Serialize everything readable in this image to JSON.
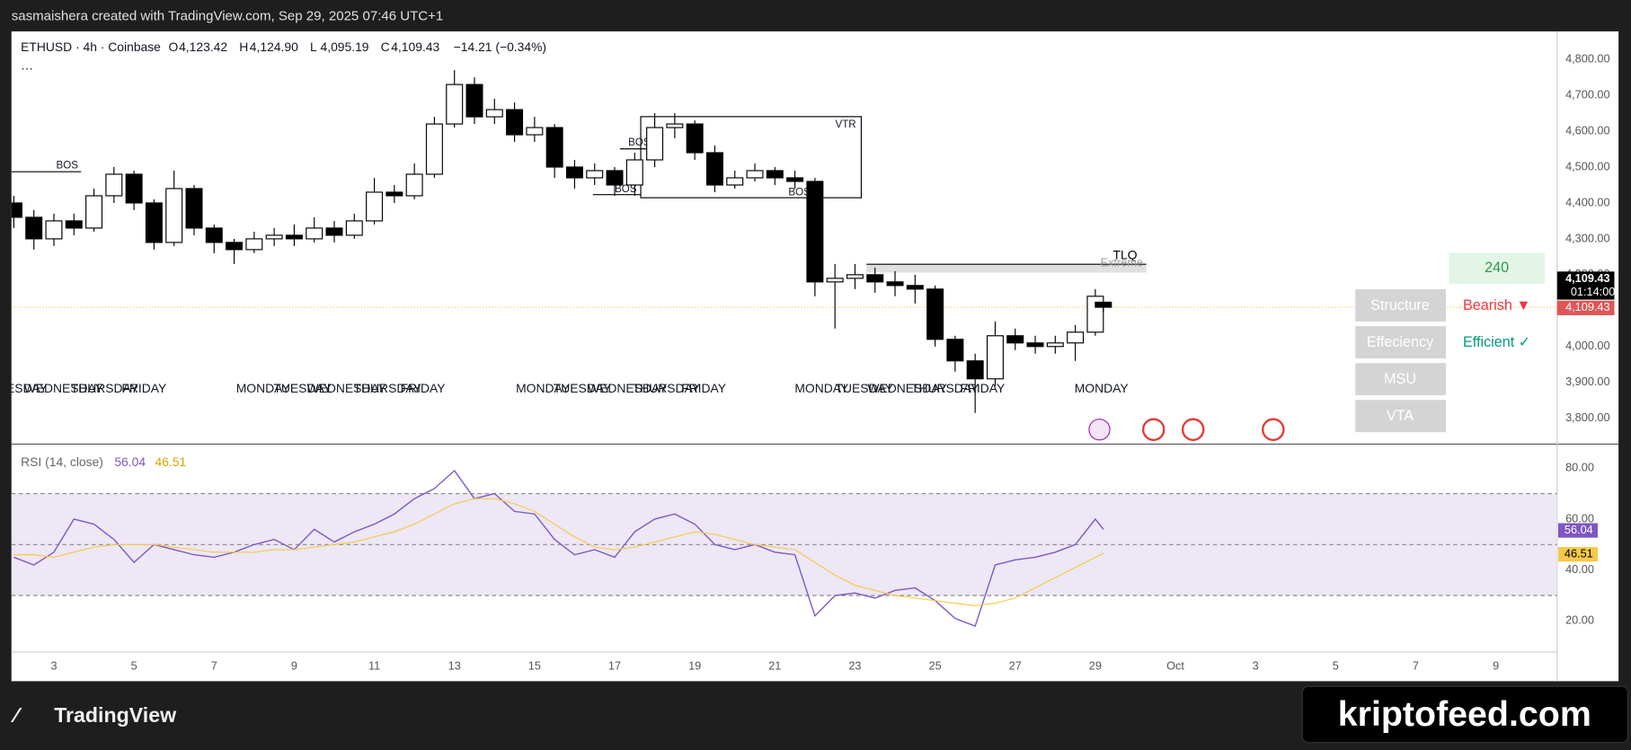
{
  "attribution": "sasmaishera created with TradingView.com, Sep 29, 2025 07:46 UTC+1",
  "header": {
    "symbol": "ETHUSD · 4h · Coinbase",
    "legend": [
      {
        "key": "O",
        "value": "4,123.42"
      },
      {
        "key": "H",
        "value": "4,124.90"
      },
      {
        "key": "L",
        "value": "4,095.19"
      },
      {
        "key": "C",
        "value": "4,109.43"
      }
    ],
    "change": "−14.21 (−0.34%)",
    "more": "···"
  },
  "panel": {
    "timeframe": "240",
    "rows": [
      {
        "label": "Structure",
        "status": "Bearish ▼",
        "status_color": "#f23645"
      },
      {
        "label": "Effeciency",
        "status": "Efficient ✓",
        "status_color": "#089981"
      },
      {
        "label": "MSU"
      },
      {
        "label": "VTA"
      }
    ]
  },
  "price_tags": {
    "last": "4,109.43",
    "countdown": "01:14:00",
    "close": "4,109.43"
  },
  "rsi_tags": [
    "56.04",
    "46.51"
  ],
  "logo": "TradingView",
  "watermark": "kriptofeed.com",
  "chart_data": [
    {
      "type": "candlestick",
      "up_color": "#ffffff",
      "down_color": "#000000",
      "grid": false,
      "x": [
        2,
        2.5,
        3,
        3.5,
        4,
        4.5,
        5,
        5.5,
        6,
        6.5,
        7,
        7.5,
        8,
        8.5,
        9,
        9.5,
        10,
        10.5,
        11,
        11.5,
        12,
        12.5,
        13,
        13.5,
        14,
        14.5,
        15,
        15.5,
        16,
        16.5,
        17,
        17.5,
        18,
        18.5,
        19,
        19.5,
        20,
        20.5,
        21,
        21.5,
        22,
        22.5,
        23,
        23.5,
        24,
        24.5,
        25,
        25.5,
        26,
        26.5,
        27,
        27.5,
        28,
        28.5,
        29,
        29.2
      ],
      "open": [
        4400,
        4360,
        4300,
        4350,
        4330,
        4420,
        4480,
        4400,
        4290,
        4440,
        4330,
        4290,
        4270,
        4300,
        4310,
        4300,
        4330,
        4310,
        4350,
        4430,
        4420,
        4480,
        4620,
        4730,
        4640,
        4660,
        4590,
        4610,
        4500,
        4470,
        4490,
        4450,
        4520,
        4610,
        4620,
        4540,
        4450,
        4470,
        4490,
        4470,
        4460,
        4180,
        4190,
        4200,
        4180,
        4170,
        4160,
        4020,
        3960,
        3910,
        4030,
        4010,
        4000,
        4010,
        4040,
        4123.42
      ],
      "high": [
        4420,
        4380,
        4370,
        4370,
        4440,
        4500,
        4490,
        4410,
        4490,
        4450,
        4340,
        4300,
        4320,
        4330,
        4340,
        4360,
        4350,
        4370,
        4470,
        4450,
        4510,
        4640,
        4770,
        4750,
        4690,
        4680,
        4640,
        4620,
        4520,
        4510,
        4500,
        4540,
        4650,
        4650,
        4630,
        4560,
        4490,
        4510,
        4500,
        4490,
        4470,
        4230,
        4230,
        4220,
        4210,
        4200,
        4170,
        4030,
        3980,
        4070,
        4050,
        4030,
        4030,
        4060,
        4160,
        4124.9
      ],
      "low": [
        4330,
        4270,
        4280,
        4310,
        4320,
        4400,
        4380,
        4270,
        4280,
        4310,
        4260,
        4230,
        4260,
        4280,
        4280,
        4290,
        4290,
        4300,
        4340,
        4400,
        4410,
        4470,
        4610,
        4620,
        4620,
        4570,
        4570,
        4470,
        4440,
        4450,
        4420,
        4420,
        4500,
        4580,
        4520,
        4430,
        4440,
        4460,
        4450,
        4440,
        4140,
        4050,
        4160,
        4150,
        4140,
        4120,
        4000,
        3930,
        3815,
        3890,
        3990,
        3980,
        3980,
        3960,
        4030,
        4095.19
      ],
      "close": [
        4360,
        4300,
        4350,
        4330,
        4420,
        4480,
        4400,
        4290,
        4440,
        4330,
        4290,
        4270,
        4300,
        4310,
        4300,
        4330,
        4310,
        4350,
        4430,
        4420,
        4480,
        4620,
        4730,
        4640,
        4660,
        4590,
        4610,
        4500,
        4470,
        4490,
        4450,
        4520,
        4610,
        4620,
        4540,
        4450,
        4470,
        4490,
        4470,
        4460,
        4180,
        4190,
        4200,
        4180,
        4170,
        4160,
        4020,
        3960,
        3910,
        4030,
        4010,
        4000,
        4010,
        4040,
        4140,
        4109.43
      ],
      "xlim": [
        1.94,
        40.53
      ],
      "ylim": [
        3728,
        4878
      ],
      "yticks": [
        {
          "value": 3800,
          "label": "3,800.00"
        },
        {
          "value": 3900,
          "label": "3,900.00"
        },
        {
          "value": 4000,
          "label": "4,000.00"
        },
        {
          "value": 4100,
          "label": "4,100.00"
        },
        {
          "value": 4200,
          "label": "4,200.00"
        },
        {
          "value": 4300,
          "label": "4,300.00"
        },
        {
          "value": 4400,
          "label": "4,400.00"
        },
        {
          "value": 4500,
          "label": "4,500.00"
        },
        {
          "value": 4600,
          "label": "4,600.00"
        },
        {
          "value": 4700,
          "label": "4,700.00"
        },
        {
          "value": 4800,
          "label": "4,800.00"
        }
      ],
      "last_price": 4109.43,
      "last_price_color": "#f2c94c",
      "annotations": [
        "BOS",
        "BOS",
        "BOS",
        "BOS",
        "VTR",
        "TLQ",
        "Extreme"
      ],
      "session_labels": [
        "TUESDAY",
        "WEDNESDAY",
        "THURSDAY",
        "FRIDAY",
        "MONDAY",
        "TUESDAY",
        "WEDNESDAY",
        "THURSDAY",
        "FRIDAY",
        "MONDAY",
        "TUESDAY",
        "WEDNESDAY",
        "THURSDAY",
        "FRIDAY",
        "MONDAY",
        "TUESDAY",
        "WEDNESDAY",
        "THURSDAY",
        "FRIDAY",
        "MONDAY"
      ]
    },
    {
      "type": "line",
      "title": "RSI (14, close)",
      "legend_values": [
        "56.04",
        "46.51"
      ],
      "x": [
        2,
        2.5,
        3,
        3.5,
        4,
        4.5,
        5,
        5.5,
        6,
        6.5,
        7,
        7.5,
        8,
        8.5,
        9,
        9.5,
        10,
        10.5,
        11,
        11.5,
        12,
        12.5,
        13,
        13.5,
        14,
        14.5,
        15,
        15.5,
        16,
        16.5,
        17,
        17.5,
        18,
        18.5,
        19,
        19.5,
        20,
        20.5,
        21,
        21.5,
        22,
        22.5,
        23,
        23.5,
        24,
        24.5,
        25,
        25.5,
        26,
        26.5,
        27,
        27.5,
        28,
        28.5,
        29,
        29.2
      ],
      "series": [
        {
          "color": "#7e57c2",
          "values": [
            45,
            42,
            47,
            60,
            58,
            52,
            43,
            50,
            48,
            46,
            45,
            47,
            50,
            52,
            48,
            56,
            51,
            55,
            58,
            62,
            68,
            72,
            79,
            68,
            70,
            63,
            62,
            52,
            46,
            48,
            45,
            55,
            60,
            62,
            58,
            50,
            48,
            50,
            47,
            46,
            22,
            30,
            31,
            29,
            32,
            33,
            28,
            21,
            18,
            42,
            44,
            45,
            47,
            50,
            60,
            56.04
          ]
        },
        {
          "color": "#f7c948",
          "values": [
            46,
            46,
            45,
            47,
            49,
            50,
            50,
            50,
            49,
            48,
            47,
            47,
            47,
            48,
            48,
            49,
            50,
            51,
            53,
            55,
            58,
            62,
            66,
            68,
            68,
            66,
            63,
            58,
            53,
            49,
            48,
            49,
            51,
            53,
            55,
            54,
            52,
            50,
            49,
            48,
            43,
            38,
            34,
            32,
            30,
            29,
            28,
            27,
            26,
            27,
            29,
            33,
            37,
            41,
            45,
            46.51
          ]
        }
      ],
      "bands": [
        70,
        50,
        30
      ],
      "band_fill": "#ede7f6",
      "xlim": [
        1.94,
        40.53
      ],
      "ylim": [
        7.8,
        89
      ],
      "yticks": [
        {
          "value": 20,
          "label": "20.00"
        },
        {
          "value": 40,
          "label": "40.00"
        },
        {
          "value": 60,
          "label": "60.00"
        },
        {
          "value": 80,
          "label": "80.00"
        }
      ],
      "xticks": [
        3,
        5,
        7,
        9,
        11,
        13,
        15,
        17,
        19,
        21,
        23,
        25,
        27,
        29,
        {
          "value": 31,
          "label": "Oct"
        },
        {
          "value": 33,
          "label": "3"
        },
        {
          "value": 35,
          "label": "5"
        },
        {
          "value": 37,
          "label": "7"
        },
        {
          "value": 39,
          "label": "9"
        }
      ]
    }
  ]
}
